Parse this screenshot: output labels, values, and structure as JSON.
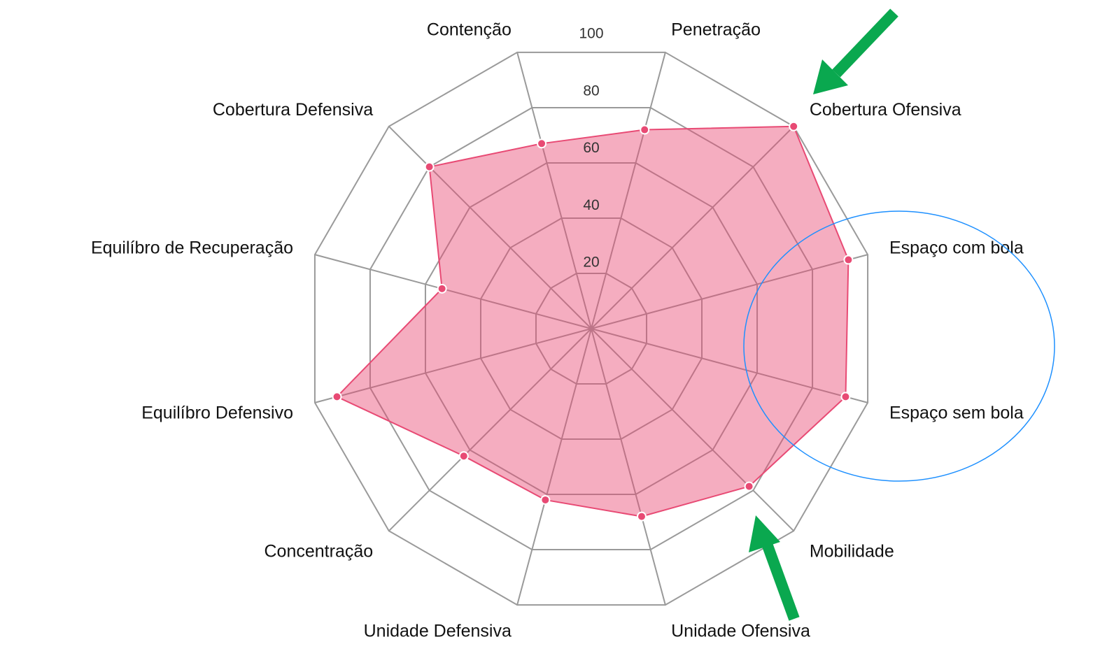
{
  "chart_data": {
    "type": "radar",
    "categories": [
      "Penetração",
      "Cobertura Ofensiva",
      "Espaço com bola",
      "Espaço sem bola",
      "Mobilidade",
      "Unidade Ofensiva",
      "Unidade Defensiva",
      "Concentração",
      "Equilíbro Defensivo",
      "Equilíbro de Recuperação",
      "Cobertura Defensiva",
      "Contenção"
    ],
    "series": [
      {
        "color": "#e84a74",
        "values": [
          72,
          100,
          93,
          92,
          78,
          68,
          62,
          63,
          92,
          54,
          80,
          67
        ]
      }
    ],
    "rlim": [
      0,
      100
    ],
    "rticks": [
      20,
      40,
      60,
      80,
      100
    ],
    "grid": true
  }
}
